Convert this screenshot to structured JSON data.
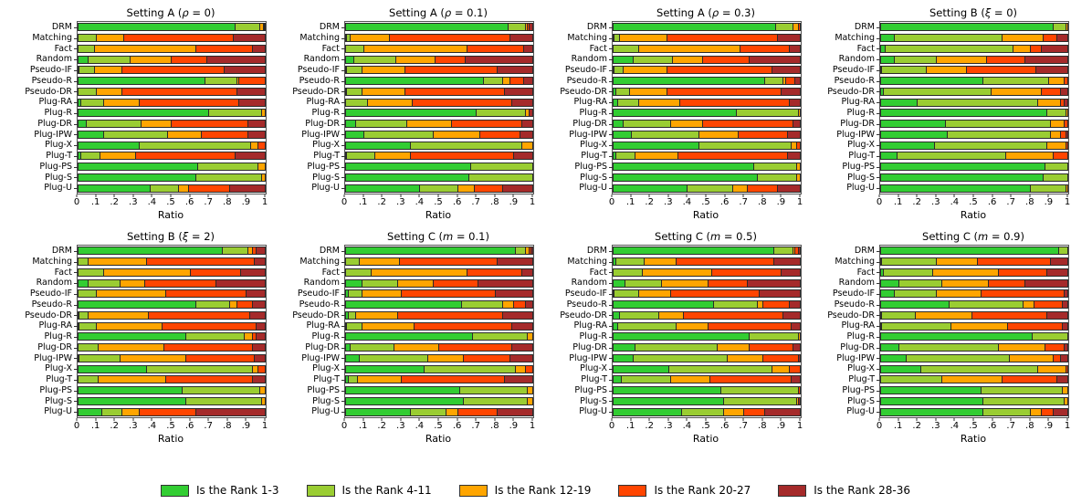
{
  "figure": {
    "background": "#ffffff"
  },
  "axis": {
    "xlabel": "Ratio",
    "xticks": [
      "0",
      ".1",
      ".2",
      ".3",
      ".4",
      ".5",
      ".6",
      ".7",
      ".8",
      ".9",
      "1"
    ]
  },
  "legend": {
    "items": [
      {
        "label": "Is the Rank 1-3",
        "color": "#32CD32"
      },
      {
        "label": "Is the Rank 4-11",
        "color": "#9ACD32"
      },
      {
        "label": "Is the Rank 12-19",
        "color": "#FFA500"
      },
      {
        "label": "Is the Rank 20-27",
        "color": "#FF4500"
      },
      {
        "label": "Is the Rank 28-36",
        "color": "#A52A2A"
      }
    ]
  },
  "chart_data": {
    "type": "bar",
    "orientation": "horizontal",
    "stacked": true,
    "xlabel": "Ratio",
    "xlim": [
      0,
      1
    ],
    "xticks": [
      "0",
      ".1",
      ".2",
      ".3",
      ".4",
      ".5",
      ".6",
      ".7",
      ".8",
      ".9",
      "1"
    ],
    "legend_position": "bottom",
    "categories": [
      "DRM",
      "Matching",
      "Fact",
      "Random",
      "Pseudo-IF",
      "Pseudo-R",
      "Pseudo-DR",
      "Plug-RA",
      "Plug-R",
      "Plug-DR",
      "Plug-IPW",
      "Plug-X",
      "Plug-T",
      "Plug-PS",
      "Plug-S",
      "Plug-U"
    ],
    "series_names": [
      "Is the Rank 1-3",
      "Is the Rank 4-11",
      "Is the Rank 12-19",
      "Is the Rank 20-27",
      "Is the Rank 28-36"
    ],
    "colors": [
      "#32CD32",
      "#9ACD32",
      "#FFA500",
      "#FF4500",
      "#A52A2A"
    ],
    "subplots": [
      {
        "title": "Setting A (ρ = 0)",
        "rows": [
          [
            0.84,
            0.13,
            0.02,
            0.005,
            0.005
          ],
          [
            0.0,
            0.1,
            0.15,
            0.58,
            0.17
          ],
          [
            0.0,
            0.09,
            0.54,
            0.3,
            0.07
          ],
          [
            0.06,
            0.22,
            0.22,
            0.19,
            0.31
          ],
          [
            0.01,
            0.08,
            0.15,
            0.54,
            0.22
          ],
          [
            0.68,
            0.17,
            0.01,
            0.14,
            0.0
          ],
          [
            0.0,
            0.1,
            0.14,
            0.61,
            0.15
          ],
          [
            0.02,
            0.12,
            0.19,
            0.53,
            0.14
          ],
          [
            0.7,
            0.28,
            0.02,
            0.0,
            0.0
          ],
          [
            0.05,
            0.29,
            0.16,
            0.41,
            0.09
          ],
          [
            0.14,
            0.34,
            0.18,
            0.25,
            0.09
          ],
          [
            0.33,
            0.59,
            0.04,
            0.04,
            0.0
          ],
          [
            0.02,
            0.1,
            0.19,
            0.53,
            0.16
          ],
          [
            0.64,
            0.32,
            0.04,
            0.0,
            0.0
          ],
          [
            0.63,
            0.35,
            0.02,
            0.0,
            0.0
          ],
          [
            0.39,
            0.15,
            0.05,
            0.22,
            0.19
          ]
        ]
      },
      {
        "title": "Setting A (ρ = 0.1)",
        "rows": [
          [
            0.87,
            0.09,
            0.01,
            0.01,
            0.02
          ],
          [
            0.01,
            0.02,
            0.21,
            0.64,
            0.12
          ],
          [
            0.0,
            0.1,
            0.55,
            0.3,
            0.05
          ],
          [
            0.05,
            0.22,
            0.21,
            0.16,
            0.36
          ],
          [
            0.01,
            0.08,
            0.23,
            0.49,
            0.19
          ],
          [
            0.74,
            0.1,
            0.04,
            0.07,
            0.05
          ],
          [
            0.01,
            0.08,
            0.23,
            0.53,
            0.15
          ],
          [
            0.0,
            0.12,
            0.24,
            0.53,
            0.11
          ],
          [
            0.7,
            0.26,
            0.02,
            0.0,
            0.02
          ],
          [
            0.06,
            0.27,
            0.24,
            0.37,
            0.06
          ],
          [
            0.1,
            0.37,
            0.25,
            0.21,
            0.07
          ],
          [
            0.35,
            0.59,
            0.06,
            0.0,
            0.0
          ],
          [
            0.01,
            0.15,
            0.19,
            0.55,
            0.1
          ],
          [
            0.67,
            0.33,
            0.0,
            0.0,
            0.0
          ],
          [
            0.66,
            0.34,
            0.0,
            0.0,
            0.0
          ],
          [
            0.4,
            0.2,
            0.09,
            0.15,
            0.16
          ]
        ]
      },
      {
        "title": "Setting A (ρ = 0.3)",
        "rows": [
          [
            0.87,
            0.09,
            0.03,
            0.01,
            0.0
          ],
          [
            0.01,
            0.03,
            0.25,
            0.59,
            0.12
          ],
          [
            0.0,
            0.14,
            0.54,
            0.26,
            0.06
          ],
          [
            0.11,
            0.21,
            0.16,
            0.25,
            0.27
          ],
          [
            0.01,
            0.05,
            0.23,
            0.56,
            0.15
          ],
          [
            0.81,
            0.1,
            0.01,
            0.05,
            0.03
          ],
          [
            0.02,
            0.07,
            0.2,
            0.61,
            0.1
          ],
          [
            0.03,
            0.11,
            0.22,
            0.58,
            0.06
          ],
          [
            0.66,
            0.33,
            0.01,
            0.0,
            0.0
          ],
          [
            0.06,
            0.25,
            0.17,
            0.48,
            0.04
          ],
          [
            0.1,
            0.36,
            0.21,
            0.26,
            0.07
          ],
          [
            0.46,
            0.49,
            0.03,
            0.02,
            0.0
          ],
          [
            0.02,
            0.1,
            0.23,
            0.58,
            0.07
          ],
          [
            0.75,
            0.23,
            0.02,
            0.0,
            0.0
          ],
          [
            0.77,
            0.21,
            0.02,
            0.0,
            0.0
          ],
          [
            0.4,
            0.24,
            0.08,
            0.16,
            0.12
          ]
        ]
      },
      {
        "title": "Setting B (ξ = 0)",
        "rows": [
          [
            0.92,
            0.07,
            0.01,
            0.0,
            0.0
          ],
          [
            0.08,
            0.57,
            0.22,
            0.07,
            0.06
          ],
          [
            0.03,
            0.68,
            0.09,
            0.06,
            0.14
          ],
          [
            0.08,
            0.22,
            0.27,
            0.2,
            0.23
          ],
          [
            0.01,
            0.24,
            0.21,
            0.37,
            0.17
          ],
          [
            0.55,
            0.35,
            0.08,
            0.02,
            0.0
          ],
          [
            0.02,
            0.57,
            0.27,
            0.1,
            0.04
          ],
          [
            0.2,
            0.64,
            0.12,
            0.02,
            0.02
          ],
          [
            0.89,
            0.1,
            0.01,
            0.0,
            0.0
          ],
          [
            0.35,
            0.56,
            0.07,
            0.02,
            0.0
          ],
          [
            0.36,
            0.55,
            0.05,
            0.03,
            0.01
          ],
          [
            0.29,
            0.6,
            0.1,
            0.01,
            0.0
          ],
          [
            0.09,
            0.58,
            0.25,
            0.08,
            0.0
          ],
          [
            0.88,
            0.12,
            0.0,
            0.0,
            0.0
          ],
          [
            0.87,
            0.13,
            0.0,
            0.0,
            0.0
          ],
          [
            0.8,
            0.19,
            0.01,
            0.0,
            0.0
          ]
        ]
      },
      {
        "title": "Setting B (ξ = 2)",
        "rows": [
          [
            0.77,
            0.14,
            0.02,
            0.02,
            0.05
          ],
          [
            0.0,
            0.06,
            0.31,
            0.57,
            0.06
          ],
          [
            0.0,
            0.14,
            0.46,
            0.27,
            0.13
          ],
          [
            0.06,
            0.17,
            0.13,
            0.38,
            0.26
          ],
          [
            0.0,
            0.1,
            0.37,
            0.43,
            0.1
          ],
          [
            0.63,
            0.18,
            0.04,
            0.08,
            0.07
          ],
          [
            0.01,
            0.05,
            0.32,
            0.54,
            0.08
          ],
          [
            0.01,
            0.09,
            0.35,
            0.5,
            0.05
          ],
          [
            0.58,
            0.31,
            0.04,
            0.02,
            0.05
          ],
          [
            0.0,
            0.11,
            0.35,
            0.47,
            0.07
          ],
          [
            0.01,
            0.22,
            0.35,
            0.36,
            0.06
          ],
          [
            0.37,
            0.56,
            0.03,
            0.04,
            0.0
          ],
          [
            0.0,
            0.11,
            0.36,
            0.46,
            0.07
          ],
          [
            0.56,
            0.41,
            0.03,
            0.0,
            0.0
          ],
          [
            0.58,
            0.4,
            0.02,
            0.0,
            0.0
          ],
          [
            0.13,
            0.11,
            0.09,
            0.3,
            0.37
          ]
        ]
      },
      {
        "title": "Setting C (m = 0.1)",
        "rows": [
          [
            0.91,
            0.05,
            0.02,
            0.01,
            0.01
          ],
          [
            0.0,
            0.08,
            0.21,
            0.52,
            0.19
          ],
          [
            0.0,
            0.14,
            0.51,
            0.29,
            0.06
          ],
          [
            0.09,
            0.19,
            0.19,
            0.24,
            0.29
          ],
          [
            0.02,
            0.07,
            0.21,
            0.5,
            0.2
          ],
          [
            0.62,
            0.22,
            0.06,
            0.06,
            0.04
          ],
          [
            0.02,
            0.04,
            0.22,
            0.56,
            0.16
          ],
          [
            0.01,
            0.08,
            0.28,
            0.52,
            0.11
          ],
          [
            0.68,
            0.29,
            0.03,
            0.0,
            0.0
          ],
          [
            0.03,
            0.23,
            0.24,
            0.39,
            0.11
          ],
          [
            0.08,
            0.36,
            0.19,
            0.25,
            0.12
          ],
          [
            0.42,
            0.49,
            0.05,
            0.04,
            0.0
          ],
          [
            0.02,
            0.05,
            0.23,
            0.55,
            0.15
          ],
          [
            0.61,
            0.36,
            0.03,
            0.0,
            0.0
          ],
          [
            0.63,
            0.34,
            0.03,
            0.0,
            0.0
          ],
          [
            0.35,
            0.19,
            0.06,
            0.21,
            0.19
          ]
        ]
      },
      {
        "title": "Setting C (m = 0.5)",
        "rows": [
          [
            0.86,
            0.1,
            0.01,
            0.02,
            0.01
          ],
          [
            0.02,
            0.15,
            0.17,
            0.52,
            0.14
          ],
          [
            0.0,
            0.16,
            0.37,
            0.37,
            0.1
          ],
          [
            0.07,
            0.19,
            0.25,
            0.21,
            0.28
          ],
          [
            0.01,
            0.13,
            0.17,
            0.47,
            0.22
          ],
          [
            0.54,
            0.23,
            0.03,
            0.14,
            0.06
          ],
          [
            0.04,
            0.21,
            0.13,
            0.53,
            0.09
          ],
          [
            0.03,
            0.31,
            0.17,
            0.44,
            0.05
          ],
          [
            0.73,
            0.26,
            0.01,
            0.0,
            0.0
          ],
          [
            0.12,
            0.44,
            0.17,
            0.23,
            0.04
          ],
          [
            0.11,
            0.5,
            0.19,
            0.19,
            0.01
          ],
          [
            0.3,
            0.55,
            0.09,
            0.06,
            0.0
          ],
          [
            0.05,
            0.26,
            0.21,
            0.43,
            0.05
          ],
          [
            0.58,
            0.41,
            0.0,
            0.01,
            0.0
          ],
          [
            0.59,
            0.39,
            0.01,
            0.0,
            0.01
          ],
          [
            0.37,
            0.22,
            0.11,
            0.11,
            0.19
          ]
        ]
      },
      {
        "title": "Setting C (m = 0.9)",
        "rows": [
          [
            0.95,
            0.05,
            0.0,
            0.0,
            0.0
          ],
          [
            0.01,
            0.29,
            0.22,
            0.39,
            0.09
          ],
          [
            0.02,
            0.26,
            0.35,
            0.26,
            0.11
          ],
          [
            0.1,
            0.23,
            0.25,
            0.19,
            0.23
          ],
          [
            0.08,
            0.22,
            0.24,
            0.44,
            0.02
          ],
          [
            0.37,
            0.39,
            0.06,
            0.15,
            0.03
          ],
          [
            0.01,
            0.18,
            0.3,
            0.4,
            0.11
          ],
          [
            0.01,
            0.37,
            0.3,
            0.29,
            0.03
          ],
          [
            0.81,
            0.19,
            0.0,
            0.0,
            0.0
          ],
          [
            0.1,
            0.53,
            0.25,
            0.1,
            0.02
          ],
          [
            0.14,
            0.55,
            0.23,
            0.04,
            0.04
          ],
          [
            0.22,
            0.62,
            0.15,
            0.01,
            0.0
          ],
          [
            0.0,
            0.33,
            0.32,
            0.29,
            0.06
          ],
          [
            0.54,
            0.43,
            0.03,
            0.0,
            0.0
          ],
          [
            0.55,
            0.43,
            0.02,
            0.0,
            0.0
          ],
          [
            0.55,
            0.25,
            0.06,
            0.06,
            0.08
          ]
        ]
      }
    ]
  }
}
